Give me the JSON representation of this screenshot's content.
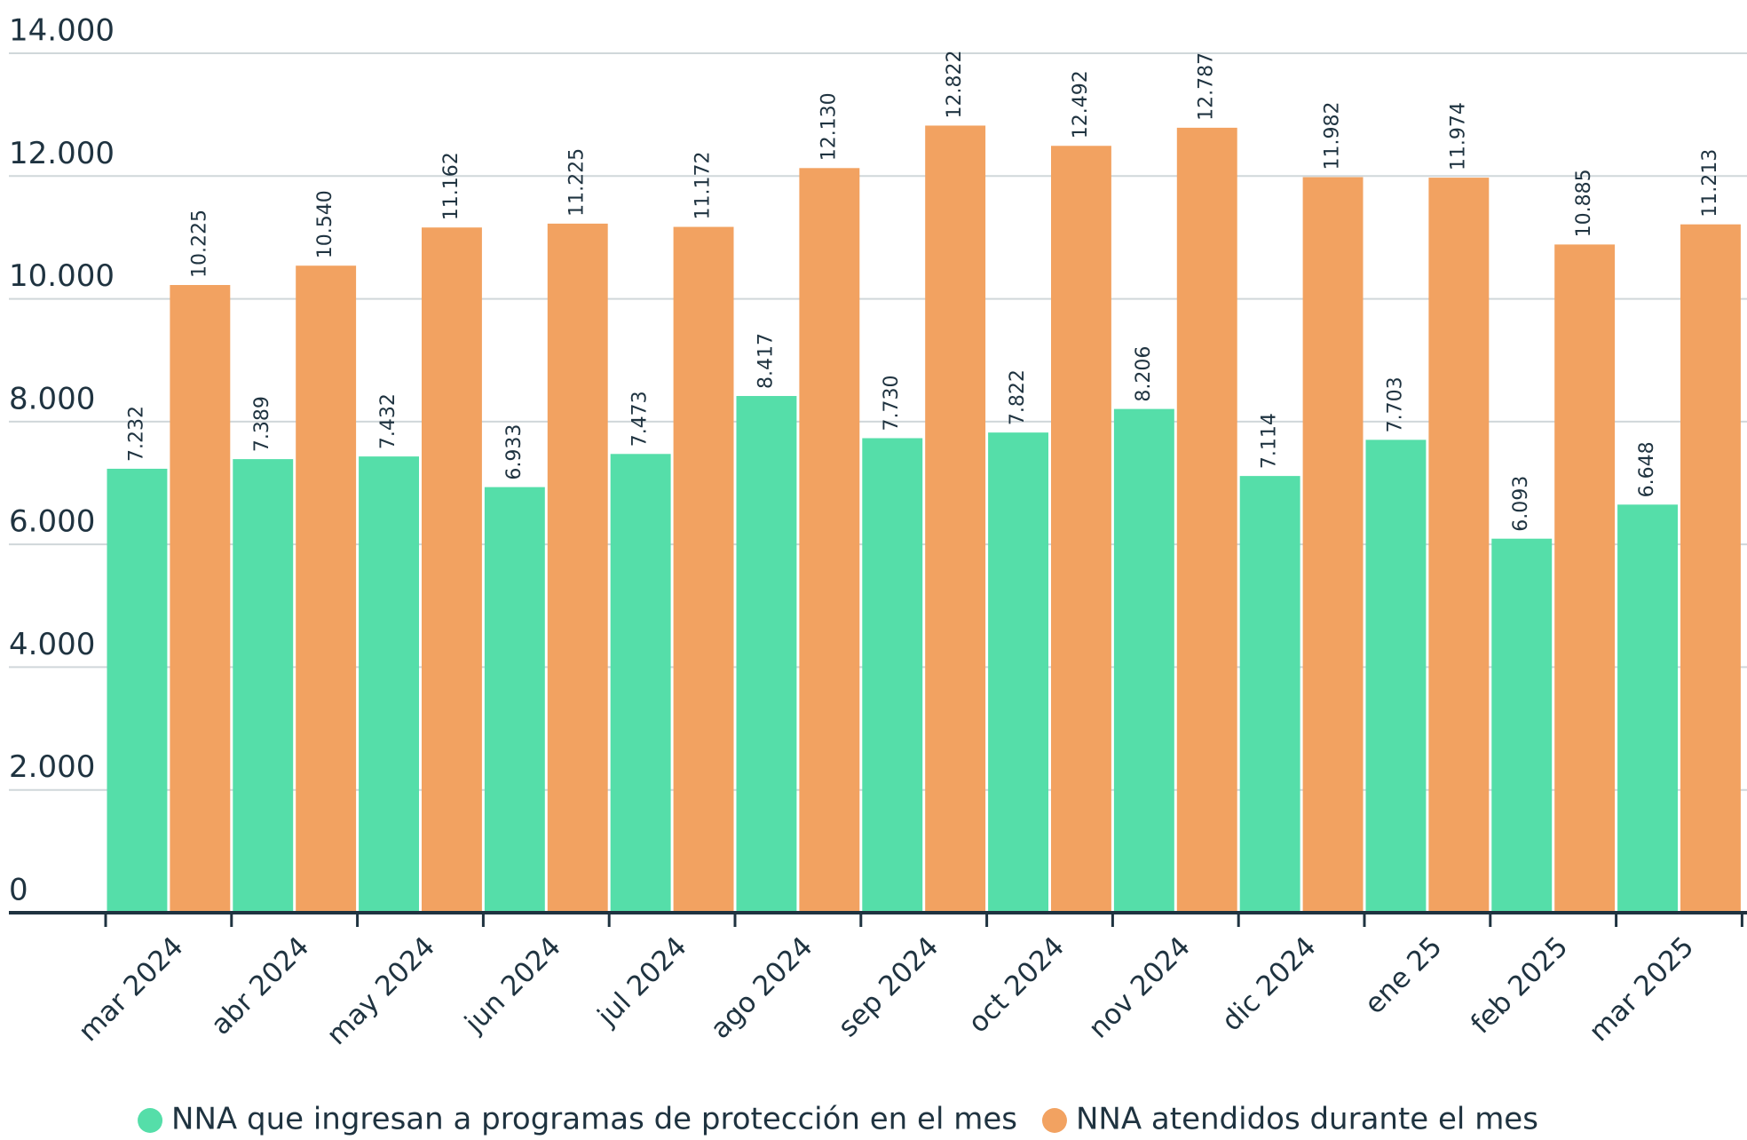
{
  "chart_data": {
    "type": "bar",
    "categories": [
      "mar 2024",
      "abr 2024",
      "may 2024",
      "jun 2024",
      "jul 2024",
      "ago 2024",
      "sep 2024",
      "oct 2024",
      "nov 2024",
      "dic 2024",
      "ene 25",
      "feb 2025",
      "mar 2025"
    ],
    "series": [
      {
        "name": "NNA que ingresan a programas de protección en el mes",
        "color": "#55dea9",
        "values": [
          7232,
          7389,
          7432,
          6933,
          7473,
          8417,
          7730,
          7822,
          8206,
          7114,
          7703,
          6093,
          6648
        ],
        "value_labels": [
          "7.232",
          "7.389",
          "7.432",
          "6.933",
          "7.473",
          "8.417",
          "7.730",
          "7.822",
          "8.206",
          "7.114",
          "7.703",
          "6.093",
          "6.648"
        ]
      },
      {
        "name": "NNA atendidos durante el mes",
        "color": "#f2a261",
        "values": [
          10225,
          10540,
          11162,
          11225,
          11172,
          12130,
          12822,
          12492,
          12787,
          11982,
          11974,
          10885,
          11213
        ],
        "value_labels": [
          "10.225",
          "10.540",
          "11.162",
          "11.225",
          "11.172",
          "12.130",
          "12.822",
          "12.492",
          "12.787",
          "11.982",
          "11.974",
          "10.885",
          "11.213"
        ]
      }
    ],
    "ylim": [
      0,
      14000
    ],
    "yticks": [
      0,
      {
        "value": 2000,
        "label": "2.000"
      },
      {
        "value": 4000,
        "label": "4.000"
      },
      {
        "value": 6000,
        "label": "6.000"
      },
      {
        "value": 8000,
        "label": "8.000"
      },
      {
        "value": 10000,
        "label": "10.000"
      },
      {
        "value": 12000,
        "label": "12.000"
      },
      {
        "value": 14000,
        "label": "14.000"
      }
    ],
    "grid": true,
    "legend": "bottom"
  }
}
